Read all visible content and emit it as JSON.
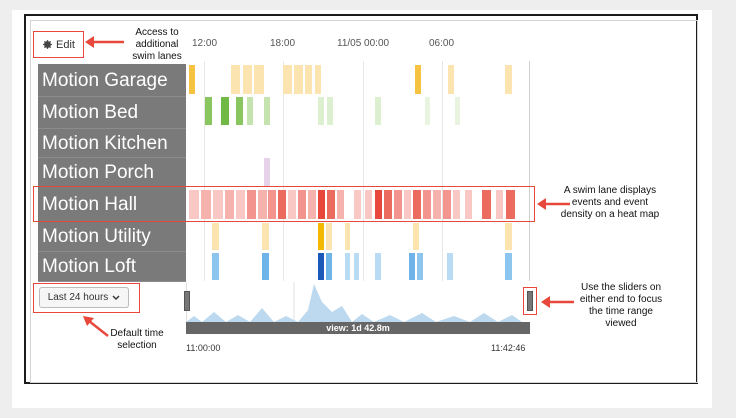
{
  "toolbar": {
    "edit_label": "Edit",
    "edit_icon": "gear-icon"
  },
  "timeline": {
    "ticks": [
      "12:00",
      "18:00",
      "11/05 00:00",
      "06:00"
    ]
  },
  "lanes": [
    {
      "label": "Motion Garage",
      "color": "#f5c242"
    },
    {
      "label": "Motion Bed",
      "color": "#7cc157"
    },
    {
      "label": "Motion Kitchen",
      "color": "#cccccc"
    },
    {
      "label": "Motion Porch",
      "color": "#c9a3cf"
    },
    {
      "label": "Motion Hall",
      "color": "#e8483c"
    },
    {
      "label": "Motion Utility",
      "color": "#f5c242"
    },
    {
      "label": "Motion Loft",
      "color": "#4a9be0"
    }
  ],
  "range_selector": {
    "label": "Last 24 hours"
  },
  "navigator": {
    "view_label": "view: 1d 42.8m",
    "start_time": "11:00:00",
    "end_time": "11:42:46"
  },
  "callouts": {
    "edit": "Access to additional swim lanes",
    "swimlane": "A swim lane displays events and event density on a heat map",
    "sliders": "Use the sliders on either end to focus the time range viewed",
    "range": "Default time selection"
  },
  "colors": {
    "highlight": "#e8483c",
    "lane_label_bg": "#7a7a7a"
  }
}
